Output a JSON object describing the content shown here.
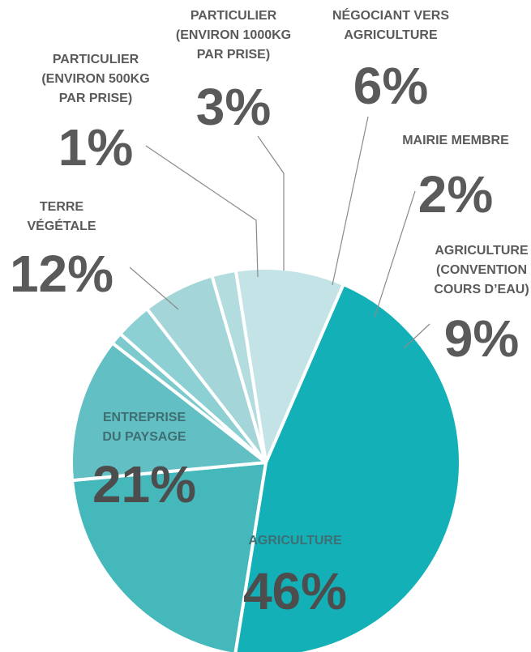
{
  "chart_data": {
    "type": "pie",
    "slices": [
      {
        "label": "AGRICULTURE",
        "label_lines": [
          "AGRICULTURE"
        ],
        "value": 46,
        "display": "46%",
        "color": "#14b0b8"
      },
      {
        "label": "ENTREPRISE DU PAYSAGE",
        "label_lines": [
          "ENTREPRISE",
          "DU PAYSAGE"
        ],
        "value": 21,
        "display": "21%",
        "color": "#45b8bc"
      },
      {
        "label": "TERRE VÉGÉTALE",
        "label_lines": [
          "TERRE",
          "VÉGÉTALE"
        ],
        "value": 12,
        "display": "12%",
        "color": "#62bfc3"
      },
      {
        "label": "PARTICULIER (ENVIRON 500KG PAR PRISE)",
        "label_lines": [
          "PARTICULIER",
          "(ENVIRON 500KG",
          "PAR PRISE)"
        ],
        "value": 1,
        "display": "1%",
        "color": "#7ccacd"
      },
      {
        "label": "PARTICULIER (ENVIRON 1000KG PAR PRISE)",
        "label_lines": [
          "PARTICULIER",
          "(ENVIRON 1000KG",
          "PAR PRISE)"
        ],
        "value": 3,
        "display": "3%",
        "color": "#8dd0d3"
      },
      {
        "label": "NÉGOCIANT VERS AGRICULTURE",
        "label_lines": [
          "NÉGOCIANT VERS",
          "AGRICULTURE"
        ],
        "value": 6,
        "display": "6%",
        "color": "#a4d5d9"
      },
      {
        "label": "MAIRIE MEMBRE",
        "label_lines": [
          "MAIRIE  MEMBRE"
        ],
        "value": 2,
        "display": "2%",
        "color": "#b3dcdf"
      },
      {
        "label": "AGRICULTURE (CONVENTION COURS D'EAU)",
        "label_lines": [
          "AGRICULTURE",
          "(CONVENTION",
          "COURS D’EAU)"
        ],
        "value": 9,
        "display": "9%",
        "color": "#c3e3e6"
      }
    ]
  }
}
